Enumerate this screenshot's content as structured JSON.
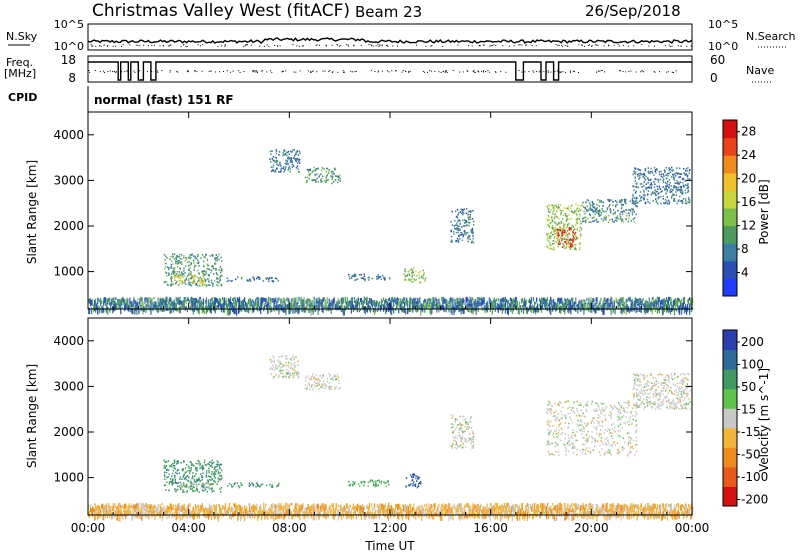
{
  "header": {
    "station": "Christmas Valley West (fitACF)",
    "beam": "Beam 23",
    "date": "26/Sep/2018"
  },
  "summary": {
    "nsky_label": "N.Sky",
    "nsearch_label": "N.Search",
    "freq_label_line1": "Freq.",
    "freq_label_line2": "[MHz]",
    "nave_label": "Nave",
    "cpid_label": "CPID",
    "cpid_value": "normal (fast) 151 RF",
    "left_ticks_noise": [
      "10^5",
      "10^0"
    ],
    "right_ticks_noise": [
      "10^5",
      "10^0"
    ],
    "left_ticks_freq": [
      "18",
      "8"
    ],
    "right_ticks_nave": [
      "60",
      "0"
    ]
  },
  "chart_data": [
    {
      "type": "heatmap",
      "panel": "power",
      "ylabel": "Slant Range [km]",
      "xlabel": "",
      "xlim": [
        "00:00",
        "24:00"
      ],
      "ylim": [
        180,
        4500
      ],
      "x_ticks": [
        "00:00",
        "04:00",
        "08:00",
        "12:00",
        "16:00",
        "20:00",
        "00:00"
      ],
      "y_ticks": [
        1000,
        2000,
        3000,
        4000
      ],
      "colorbar": {
        "label": "Power [dB]",
        "ticks": [
          4,
          8,
          12,
          16,
          20,
          24,
          28
        ],
        "range": [
          0,
          30
        ],
        "colors": [
          "#1f3cff",
          "#2b4fb4",
          "#3d7fa3",
          "#4f9a5e",
          "#7cc04a",
          "#c7d43a",
          "#f0c02a",
          "#f08a1f",
          "#e8421a",
          "#d41010"
        ]
      },
      "regions": [
        {
          "t0": 3.0,
          "t1": 5.3,
          "r0": 700,
          "r1": 1400,
          "power": 10
        },
        {
          "t0": 3.4,
          "t1": 4.6,
          "r0": 750,
          "r1": 950,
          "power": 17
        },
        {
          "t0": 5.5,
          "t1": 7.6,
          "r0": 800,
          "r1": 900,
          "power": 7
        },
        {
          "t0": 7.2,
          "t1": 8.4,
          "r0": 3200,
          "r1": 3700,
          "power": 7
        },
        {
          "t0": 8.6,
          "t1": 10.0,
          "r0": 2950,
          "r1": 3300,
          "power": 10
        },
        {
          "t0": 10.3,
          "t1": 12.0,
          "r0": 820,
          "r1": 960,
          "power": 7
        },
        {
          "t0": 12.5,
          "t1": 13.4,
          "r0": 780,
          "r1": 1100,
          "power": 14
        },
        {
          "t0": 14.4,
          "t1": 15.3,
          "r0": 1650,
          "r1": 2400,
          "power": 7
        },
        {
          "t0": 18.2,
          "t1": 19.6,
          "r0": 1500,
          "r1": 2500,
          "power": 14
        },
        {
          "t0": 18.6,
          "t1": 19.4,
          "r0": 1550,
          "r1": 2000,
          "power": 26
        },
        {
          "t0": 19.6,
          "t1": 21.8,
          "r0": 2100,
          "r1": 2600,
          "power": 9
        },
        {
          "t0": 21.6,
          "t1": 23.9,
          "r0": 2500,
          "r1": 3300,
          "power": 7
        }
      ],
      "ground_scatter_band": {
        "t0": 0.0,
        "t1": 24.0,
        "r0": 180,
        "r1": 450,
        "power": 8
      }
    },
    {
      "type": "heatmap",
      "panel": "velocity",
      "ylabel": "Slant Range [km]",
      "xlabel": "Time UT",
      "xlim": [
        "00:00",
        "24:00"
      ],
      "ylim": [
        180,
        4500
      ],
      "x_ticks": [
        "00:00",
        "04:00",
        "08:00",
        "12:00",
        "16:00",
        "20:00",
        "00:00"
      ],
      "y_ticks": [
        1000,
        2000,
        3000,
        4000
      ],
      "colorbar": {
        "label": "Velocity [m s^-1]",
        "ticks": [
          200,
          100,
          50,
          15,
          -15,
          -50,
          -100,
          -200
        ],
        "colors": [
          "#2b3fb0",
          "#2f6b9a",
          "#3f9a64",
          "#5cc44a",
          "#c8c8c8",
          "#f2b43a",
          "#f08a1f",
          "#e85a1a",
          "#d41010"
        ]
      },
      "regions": [
        {
          "t0": 3.0,
          "t1": 5.3,
          "r0": 700,
          "r1": 1400,
          "vel": 60
        },
        {
          "t0": 3.6,
          "t1": 4.8,
          "r0": 780,
          "r1": 900,
          "vel": 0
        },
        {
          "t0": 5.5,
          "t1": 7.6,
          "r0": 800,
          "r1": 900,
          "vel": 60
        },
        {
          "t0": 7.2,
          "t1": 8.4,
          "r0": 3200,
          "r1": 3700,
          "vel": 0
        },
        {
          "t0": 8.6,
          "t1": 10.0,
          "r0": 2950,
          "r1": 3300,
          "vel": 0
        },
        {
          "t0": 10.3,
          "t1": 12.0,
          "r0": 820,
          "r1": 960,
          "vel": 40
        },
        {
          "t0": 12.6,
          "t1": 13.2,
          "r0": 780,
          "r1": 1100,
          "vel": 150
        },
        {
          "t0": 14.4,
          "t1": 15.3,
          "r0": 1650,
          "r1": 2400,
          "vel": 0
        },
        {
          "t0": 18.2,
          "t1": 21.8,
          "r0": 1500,
          "r1": 2700,
          "vel": 0
        },
        {
          "t0": 21.6,
          "t1": 23.9,
          "r0": 2500,
          "r1": 3300,
          "vel": 0
        }
      ],
      "ground_scatter_band": {
        "t0": 0.0,
        "t1": 24.0,
        "r0": 180,
        "r1": 450,
        "vel": -30
      }
    }
  ]
}
